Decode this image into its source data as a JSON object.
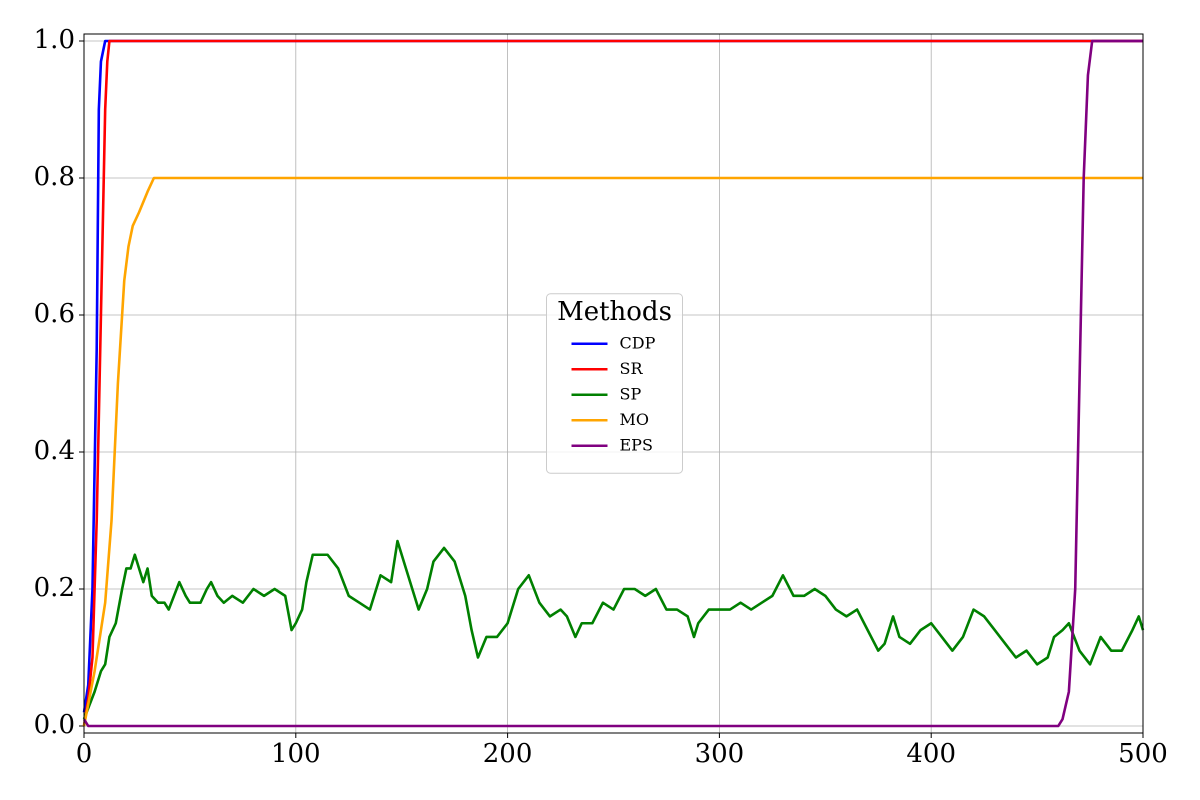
{
  "chart_data": {
    "type": "line",
    "xlim": [
      0,
      500
    ],
    "ylim": [
      0,
      1.0
    ],
    "xticks": [
      0,
      100,
      200,
      300,
      400,
      500
    ],
    "yticks": [
      {
        "value": 0,
        "label": "0.0"
      },
      0.2,
      0.4,
      0.6,
      0.8,
      {
        "value": 1,
        "label": "1.0"
      }
    ],
    "grid": true,
    "legend_title": "Methods",
    "legend_position": "center",
    "series": [
      {
        "name": "CDP",
        "color": "#0000ff",
        "x": [
          0,
          2,
          4,
          6,
          7,
          8,
          10,
          500
        ],
        "values": [
          0.02,
          0.06,
          0.2,
          0.55,
          0.9,
          0.97,
          1,
          1
        ]
      },
      {
        "name": "SR",
        "color": "#ff0000",
        "x": [
          0,
          2,
          4,
          6,
          8,
          10,
          11,
          12,
          500
        ],
        "values": [
          0,
          0.04,
          0.1,
          0.3,
          0.6,
          0.9,
          0.97,
          1,
          1
        ]
      },
      {
        "name": "SP",
        "color": "#008000",
        "x": [
          0,
          5,
          8,
          10,
          12,
          15,
          18,
          20,
          22,
          24,
          26,
          28,
          30,
          32,
          35,
          38,
          40,
          45,
          48,
          50,
          55,
          58,
          60,
          63,
          66,
          70,
          75,
          80,
          85,
          90,
          95,
          98,
          100,
          103,
          105,
          108,
          110,
          115,
          120,
          125,
          130,
          135,
          140,
          145,
          148,
          152,
          155,
          158,
          162,
          165,
          170,
          175,
          180,
          183,
          186,
          190,
          195,
          200,
          205,
          210,
          215,
          220,
          225,
          228,
          232,
          235,
          240,
          245,
          250,
          255,
          260,
          265,
          270,
          275,
          280,
          285,
          288,
          290,
          295,
          300,
          305,
          310,
          315,
          320,
          325,
          330,
          335,
          340,
          345,
          350,
          355,
          360,
          365,
          370,
          375,
          378,
          382,
          385,
          390,
          395,
          400,
          405,
          410,
          415,
          420,
          425,
          430,
          435,
          440,
          445,
          450,
          455,
          458,
          462,
          465,
          470,
          475,
          480,
          485,
          490,
          495,
          498,
          500
        ],
        "values": [
          0.01,
          0.05,
          0.08,
          0.09,
          0.13,
          0.15,
          0.2,
          0.23,
          0.23,
          0.25,
          0.23,
          0.21,
          0.23,
          0.19,
          0.18,
          0.18,
          0.17,
          0.21,
          0.19,
          0.18,
          0.18,
          0.2,
          0.21,
          0.19,
          0.18,
          0.19,
          0.18,
          0.2,
          0.19,
          0.2,
          0.19,
          0.14,
          0.15,
          0.17,
          0.21,
          0.25,
          0.25,
          0.25,
          0.23,
          0.19,
          0.18,
          0.17,
          0.22,
          0.21,
          0.27,
          0.23,
          0.2,
          0.17,
          0.2,
          0.24,
          0.26,
          0.24,
          0.19,
          0.14,
          0.1,
          0.13,
          0.13,
          0.15,
          0.2,
          0.22,
          0.18,
          0.16,
          0.17,
          0.16,
          0.13,
          0.15,
          0.15,
          0.18,
          0.17,
          0.2,
          0.2,
          0.19,
          0.2,
          0.17,
          0.17,
          0.16,
          0.13,
          0.15,
          0.17,
          0.17,
          0.17,
          0.18,
          0.17,
          0.18,
          0.19,
          0.22,
          0.19,
          0.19,
          0.2,
          0.19,
          0.17,
          0.16,
          0.17,
          0.14,
          0.11,
          0.12,
          0.16,
          0.13,
          0.12,
          0.14,
          0.15,
          0.13,
          0.11,
          0.13,
          0.17,
          0.16,
          0.14,
          0.12,
          0.1,
          0.11,
          0.09,
          0.1,
          0.13,
          0.14,
          0.15,
          0.11,
          0.09,
          0.13,
          0.11,
          0.11,
          0.14,
          0.16,
          0.14
        ]
      },
      {
        "name": "MO",
        "color": "#ffa500",
        "x": [
          0,
          5,
          10,
          13,
          16,
          19,
          21,
          23,
          26,
          30,
          33,
          35,
          500
        ],
        "values": [
          0,
          0.08,
          0.18,
          0.3,
          0.5,
          0.65,
          0.7,
          0.73,
          0.75,
          0.78,
          0.8,
          0.8,
          0.8
        ]
      },
      {
        "name": "EPS",
        "color": "#800080",
        "x": [
          0,
          2,
          460,
          462,
          465,
          468,
          470,
          472,
          474,
          476,
          500
        ],
        "values": [
          0.01,
          0,
          0,
          0.01,
          0.05,
          0.2,
          0.5,
          0.8,
          0.95,
          1,
          1
        ]
      }
    ]
  }
}
